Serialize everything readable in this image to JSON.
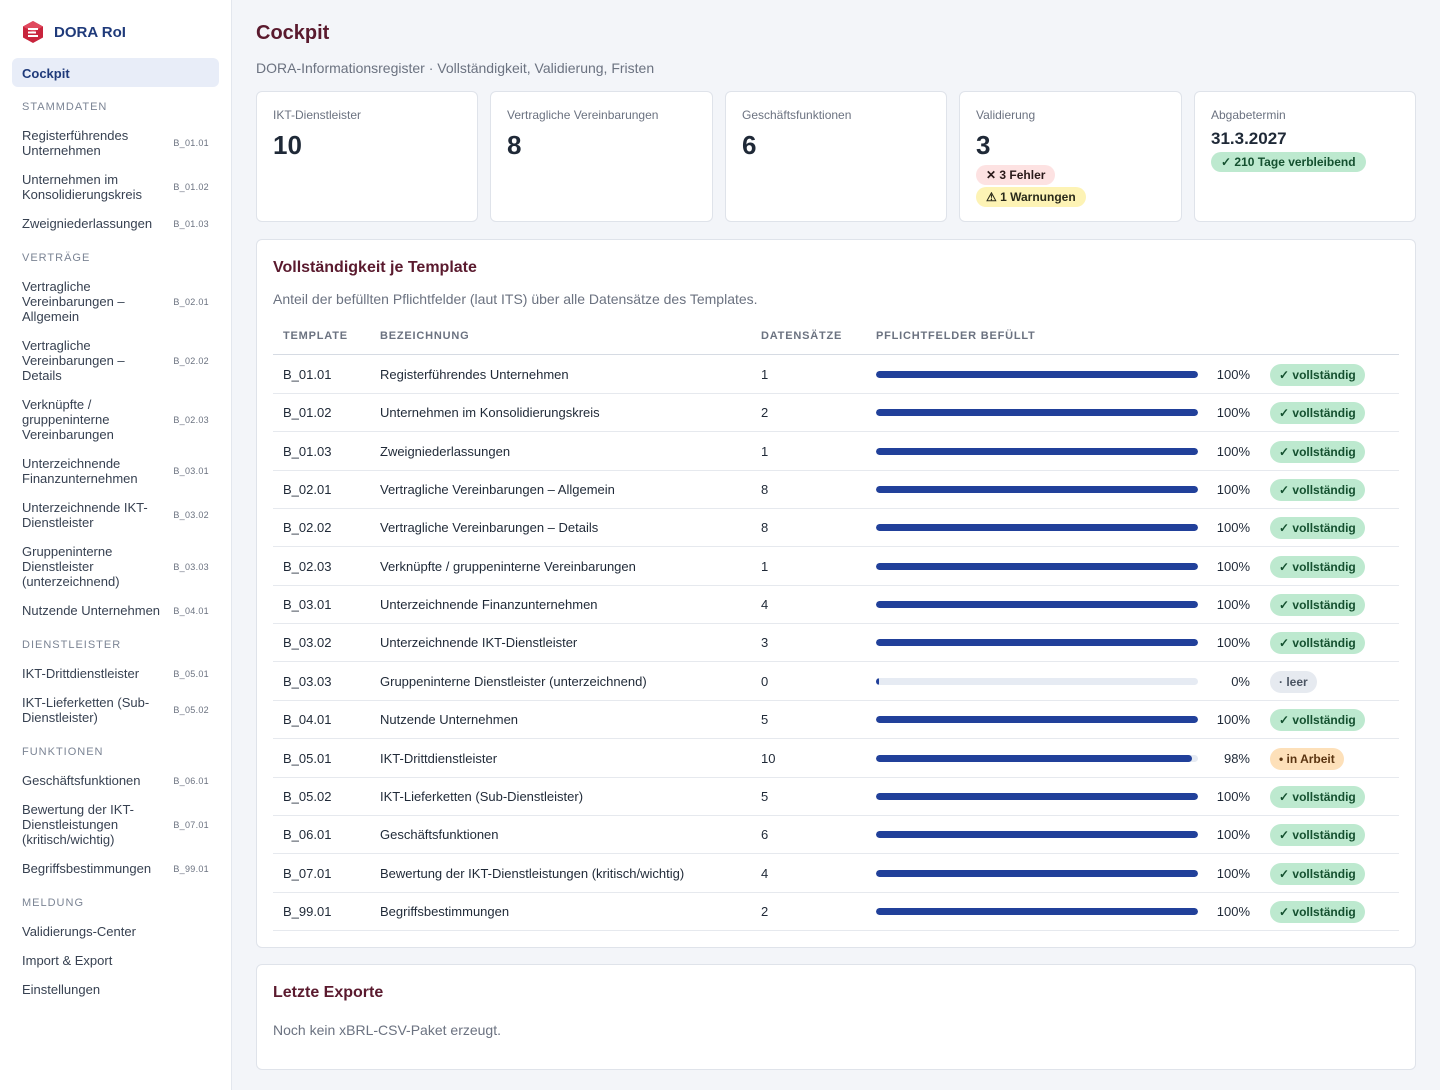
{
  "app": {
    "name": "DORA RoI"
  },
  "sidebar": {
    "active": "Cockpit",
    "sections": [
      {
        "title": "STAMMDATEN",
        "items": [
          {
            "label": "Registerführendes Unternehmen",
            "code": "B_01.01"
          },
          {
            "label": "Unternehmen im Konsolidierungskreis",
            "code": "B_01.02"
          },
          {
            "label": "Zweigniederlassungen",
            "code": "B_01.03"
          }
        ]
      },
      {
        "title": "VERTRÄGE",
        "items": [
          {
            "label": "Vertragliche Vereinbarungen – Allgemein",
            "code": "B_02.01"
          },
          {
            "label": "Vertragliche Vereinbarungen – Details",
            "code": "B_02.02"
          },
          {
            "label": "Verknüpfte / gruppeninterne Vereinbarungen",
            "code": "B_02.03"
          },
          {
            "label": "Unterzeichnende Finanzunternehmen",
            "code": "B_03.01"
          },
          {
            "label": "Unterzeichnende IKT-Dienstleister",
            "code": "B_03.02"
          },
          {
            "label": "Gruppeninterne Dienstleister (unterzeichnend)",
            "code": "B_03.03"
          },
          {
            "label": "Nutzende Unternehmen",
            "code": "B_04.01"
          }
        ]
      },
      {
        "title": "DIENSTLEISTER",
        "items": [
          {
            "label": "IKT-Drittdienstleister",
            "code": "B_05.01"
          },
          {
            "label": "IKT-Lieferketten (Sub-Dienstleister)",
            "code": "B_05.02"
          }
        ]
      },
      {
        "title": "FUNKTIONEN",
        "items": [
          {
            "label": "Geschäftsfunktionen",
            "code": "B_06.01"
          },
          {
            "label": "Bewertung der IKT-Dienstleistungen (kritisch/wichtig)",
            "code": "B_07.01"
          },
          {
            "label": "Begriffsbestimmungen",
            "code": "B_99.01"
          }
        ]
      },
      {
        "title": "MELDUNG",
        "items": [
          {
            "label": "Validierungs-Center",
            "code": ""
          },
          {
            "label": "Import & Export",
            "code": ""
          },
          {
            "label": "Einstellungen",
            "code": ""
          }
        ]
      }
    ]
  },
  "header": {
    "title": "Cockpit",
    "subtitle": "DORA-Informationsregister · Vollständigkeit, Validierung, Fristen"
  },
  "cards": {
    "providers": {
      "label": "IKT-Dienstleister",
      "value": "10"
    },
    "contracts": {
      "label": "Vertragliche Vereinbarungen",
      "value": "8"
    },
    "functions": {
      "label": "Geschäftsfunktionen",
      "value": "6"
    },
    "validation": {
      "label": "Validierung",
      "value": "3",
      "errors": "✕  3 Fehler",
      "warnings": "⚠  1 Warnungen"
    },
    "deadline": {
      "label": "Abgabetermin",
      "date": "31.3.2027",
      "remaining": "✓  210 Tage verbleibend"
    }
  },
  "completeness": {
    "title": "Vollständigkeit je Template",
    "subtitle": "Anteil der befüllten Pflichtfelder (laut ITS) über alle Datensätze des Templates.",
    "columns": [
      "TEMPLATE",
      "BEZEICHNUNG",
      "DATENSÄTZE",
      "PFLICHTFELDER BEFÜLLT"
    ],
    "rows": [
      {
        "code": "B_01.01",
        "name": "Registerführendes Unternehmen",
        "records": "1",
        "fill": 100,
        "pct": "100%",
        "status": "✓  vollständig",
        "state": "done"
      },
      {
        "code": "B_01.02",
        "name": "Unternehmen im Konsolidierungskreis",
        "records": "2",
        "fill": 100,
        "pct": "100%",
        "status": "✓  vollständig",
        "state": "done"
      },
      {
        "code": "B_01.03",
        "name": "Zweigniederlassungen",
        "records": "1",
        "fill": 100,
        "pct": "100%",
        "status": "✓  vollständig",
        "state": "done"
      },
      {
        "code": "B_02.01",
        "name": "Vertragliche Vereinbarungen – Allgemein",
        "records": "8",
        "fill": 100,
        "pct": "100%",
        "status": "✓  vollständig",
        "state": "done"
      },
      {
        "code": "B_02.02",
        "name": "Vertragliche Vereinbarungen – Details",
        "records": "8",
        "fill": 100,
        "pct": "100%",
        "status": "✓  vollständig",
        "state": "done"
      },
      {
        "code": "B_02.03",
        "name": "Verknüpfte / gruppeninterne Vereinbarungen",
        "records": "1",
        "fill": 100,
        "pct": "100%",
        "status": "✓  vollständig",
        "state": "done"
      },
      {
        "code": "B_03.01",
        "name": "Unterzeichnende Finanzunternehmen",
        "records": "4",
        "fill": 100,
        "pct": "100%",
        "status": "✓  vollständig",
        "state": "done"
      },
      {
        "code": "B_03.02",
        "name": "Unterzeichnende IKT-Dienstleister",
        "records": "3",
        "fill": 100,
        "pct": "100%",
        "status": "✓  vollständig",
        "state": "done"
      },
      {
        "code": "B_03.03",
        "name": "Gruppeninterne Dienstleister (unterzeichnend)",
        "records": "0",
        "fill": 0,
        "pct": "0%",
        "status": "·  leer",
        "state": "empty"
      },
      {
        "code": "B_04.01",
        "name": "Nutzende Unternehmen",
        "records": "5",
        "fill": 100,
        "pct": "100%",
        "status": "✓  vollständig",
        "state": "done"
      },
      {
        "code": "B_05.01",
        "name": "IKT-Drittdienstleister",
        "records": "10",
        "fill": 98,
        "pct": "98%",
        "status": "•  in Arbeit",
        "state": "work"
      },
      {
        "code": "B_05.02",
        "name": "IKT-Lieferketten (Sub-Dienstleister)",
        "records": "5",
        "fill": 100,
        "pct": "100%",
        "status": "✓  vollständig",
        "state": "done"
      },
      {
        "code": "B_06.01",
        "name": "Geschäftsfunktionen",
        "records": "6",
        "fill": 100,
        "pct": "100%",
        "status": "✓  vollständig",
        "state": "done"
      },
      {
        "code": "B_07.01",
        "name": "Bewertung der IKT-Dienstleistungen (kritisch/wichtig)",
        "records": "4",
        "fill": 100,
        "pct": "100%",
        "status": "✓  vollständig",
        "state": "done"
      },
      {
        "code": "B_99.01",
        "name": "Begriffsbestimmungen",
        "records": "2",
        "fill": 100,
        "pct": "100%",
        "status": "✓  vollständig",
        "state": "done"
      }
    ]
  },
  "exports": {
    "title": "Letzte Exporte",
    "empty": "Noch kein xBRL-CSV-Paket erzeugt."
  },
  "colors": {
    "accent": "#1f3a7a",
    "title": "#5a1a2e",
    "bar": "#21409a",
    "done": "#bde9cf",
    "work": "#fde0b9",
    "empty": "#e6eaf0"
  }
}
